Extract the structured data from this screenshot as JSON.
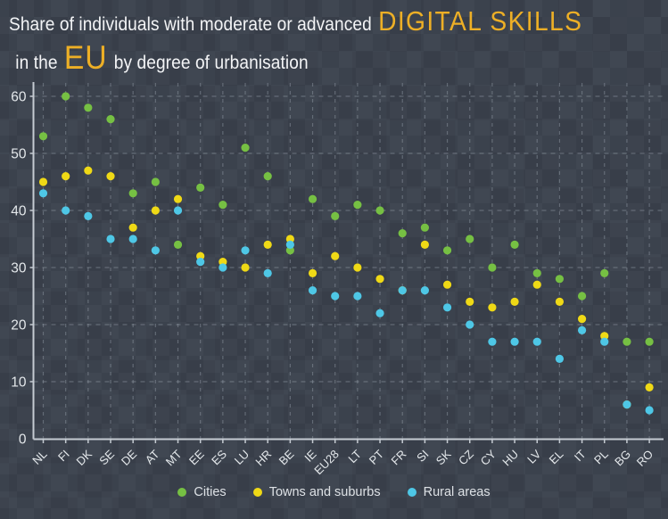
{
  "title": {
    "line1_regular": "Share of individuals with moderate or advanced",
    "line1_highlight": "DIGITAL SKILLS",
    "line2_prefix": "in the",
    "line2_highlight": "EU",
    "line2_suffix": "by degree of urbanisation"
  },
  "colors": {
    "background": "#3B424D",
    "title_text": "#F3F4F6",
    "accent_gold": "#EDAF26",
    "cities_green": "#76C043",
    "towns_yellow": "#EFD916",
    "rural_cyan": "#4EC7E6",
    "axis_line": "#C5CBD2",
    "axis_text": "#E4E8EB",
    "gridline": "#97A0AB",
    "legend_text": "#DDE1E5"
  },
  "chart_data": {
    "type": "scatter",
    "title": "Share of individuals with moderate or advanced DIGITAL SKILLS in the EU by degree of urbanisation",
    "categories": [
      "NL",
      "FI",
      "DK",
      "SE",
      "DE",
      "AT",
      "MT",
      "EE",
      "ES",
      "LU",
      "HR",
      "BE",
      "IE",
      "EU28",
      "LT",
      "PT",
      "FR",
      "SI",
      "SK",
      "CZ",
      "CY",
      "HU",
      "LV",
      "EL",
      "IT",
      "PL",
      "BG",
      "RO"
    ],
    "series": [
      {
        "name": "Cities",
        "color_key": "cities_green",
        "values": [
          53,
          60,
          58,
          56,
          43,
          45,
          34,
          44,
          41,
          51,
          46,
          33,
          42,
          39,
          41,
          40,
          36,
          37,
          33,
          35,
          30,
          34,
          29,
          28,
          25,
          29,
          17,
          17
        ]
      },
      {
        "name": "Towns and suburbs",
        "color_key": "towns_yellow",
        "values": [
          45,
          46,
          47,
          46,
          37,
          40,
          42,
          32,
          31,
          30,
          34,
          35,
          29,
          32,
          30,
          28,
          26,
          34,
          27,
          24,
          23,
          24,
          27,
          24,
          21,
          18,
          6,
          9
        ]
      },
      {
        "name": "Rural areas",
        "color_key": "rural_cyan",
        "values": [
          43,
          40,
          39,
          35,
          35,
          33,
          40,
          31,
          30,
          33,
          29,
          34,
          26,
          25,
          25,
          22,
          26,
          26,
          23,
          20,
          17,
          17,
          17,
          14,
          19,
          17,
          6,
          5
        ]
      }
    ],
    "ylim": [
      0,
      60
    ],
    "yticks": [
      0,
      10,
      20,
      30,
      40,
      50,
      60
    ],
    "grid": "dashed",
    "legend_position": "bottom"
  },
  "legend": {
    "items": [
      {
        "label": "Cities"
      },
      {
        "label": "Towns and suburbs"
      },
      {
        "label": "Rural areas"
      }
    ]
  }
}
